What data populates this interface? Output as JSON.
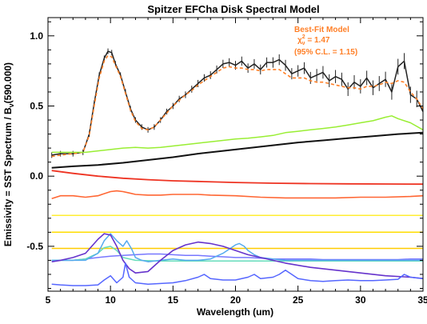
{
  "chart_data": {
    "type": "line",
    "title": "Spitzer EFCha Disk Spectral Model",
    "xlabel": "Wavelength (um)",
    "ylabel": "Emissivity   = SST Spectrum / B",
    "ylabel_sub": "ν",
    "ylabel_tail": "(590.000)",
    "xlim": [
      5,
      35
    ],
    "ylim": [
      -0.82,
      1.13
    ],
    "x_ticks": [
      5,
      10,
      15,
      20,
      25,
      30,
      35
    ],
    "y_ticks": [
      -0.5,
      0.0,
      0.5,
      1.0
    ],
    "y_tick_labels": [
      "-0.5",
      "0.0",
      "0.5",
      "1.0"
    ],
    "grid": false,
    "annotation": {
      "line1": "Best-Fit Model",
      "chi_prefix": "χ",
      "chi_sup": "2",
      "chi_sub": "ν",
      "chi_value": " = 1.47",
      "line3": "(95% C.L. = 1.15)",
      "color": "#ff7f27"
    },
    "series": [
      {
        "color": "#222222",
        "width": 1.5,
        "errorbars": true,
        "x": [
          5.3,
          6,
          7,
          7.8,
          8.3,
          8.7,
          9.1,
          9.5,
          9.8,
          10.1,
          10.4,
          10.8,
          11.2,
          11.6,
          12,
          12.5,
          13,
          13.5,
          14,
          14.5,
          15,
          15.5,
          16,
          16.5,
          17,
          17.5,
          18,
          18.5,
          19,
          19.5,
          20,
          20.5,
          21,
          21.5,
          22,
          22.5,
          23,
          23.5,
          24,
          24.5,
          25,
          25.5,
          26,
          26.5,
          27,
          27.5,
          28,
          28.5,
          29,
          29.5,
          30,
          30.5,
          31,
          31.5,
          32,
          32.5,
          33,
          33.5,
          34,
          34.5,
          35
        ],
        "y": [
          0.15,
          0.16,
          0.16,
          0.17,
          0.3,
          0.52,
          0.72,
          0.84,
          0.89,
          0.88,
          0.8,
          0.72,
          0.6,
          0.48,
          0.4,
          0.35,
          0.33,
          0.35,
          0.4,
          0.46,
          0.5,
          0.55,
          0.58,
          0.62,
          0.66,
          0.7,
          0.72,
          0.76,
          0.8,
          0.81,
          0.79,
          0.82,
          0.77,
          0.8,
          0.76,
          0.81,
          0.81,
          0.83,
          0.79,
          0.73,
          0.75,
          0.77,
          0.7,
          0.72,
          0.74,
          0.68,
          0.71,
          0.69,
          0.62,
          0.67,
          0.64,
          0.7,
          0.63,
          0.66,
          0.69,
          0.6,
          0.78,
          0.82,
          0.58,
          0.55,
          0.46
        ]
      },
      {
        "color": "#ff7f27",
        "width": 1.6,
        "dashed": true,
        "x": [
          5.3,
          6,
          7,
          7.8,
          8.3,
          8.7,
          9.1,
          9.5,
          9.8,
          10.1,
          10.4,
          10.8,
          11.2,
          11.6,
          12,
          12.5,
          13,
          13.5,
          14,
          14.5,
          15,
          15.5,
          16,
          16.5,
          17,
          17.5,
          18,
          18.5,
          19,
          19.5,
          20,
          20.5,
          21,
          21.5,
          22,
          22.5,
          23,
          23.5,
          24,
          24.5,
          25,
          25.5,
          26,
          26.5,
          27,
          27.5,
          28,
          28.5,
          29,
          29.5,
          30,
          30.5,
          31,
          31.5,
          32,
          32.5,
          33,
          33.5,
          34,
          34.5,
          35
        ],
        "y": [
          0.14,
          0.15,
          0.16,
          0.17,
          0.29,
          0.5,
          0.7,
          0.82,
          0.86,
          0.85,
          0.79,
          0.71,
          0.59,
          0.47,
          0.39,
          0.34,
          0.33,
          0.35,
          0.4,
          0.45,
          0.5,
          0.54,
          0.58,
          0.61,
          0.65,
          0.68,
          0.71,
          0.74,
          0.77,
          0.78,
          0.77,
          0.77,
          0.76,
          0.76,
          0.75,
          0.76,
          0.76,
          0.76,
          0.73,
          0.7,
          0.7,
          0.7,
          0.68,
          0.67,
          0.67,
          0.66,
          0.65,
          0.64,
          0.63,
          0.63,
          0.62,
          0.64,
          0.64,
          0.65,
          0.67,
          0.66,
          0.68,
          0.67,
          0.6,
          0.55,
          0.48
        ]
      },
      {
        "color": "#99ee33",
        "width": 1.5,
        "x": [
          5.3,
          7,
          8,
          9,
          10,
          11,
          12,
          13,
          14,
          15,
          16,
          17,
          18,
          19,
          20,
          21,
          22,
          23,
          24,
          25,
          26,
          27,
          28,
          29,
          30,
          31,
          32,
          32.5,
          33,
          34,
          35
        ],
        "y": [
          0.17,
          0.17,
          0.17,
          0.18,
          0.19,
          0.2,
          0.205,
          0.2,
          0.205,
          0.215,
          0.225,
          0.235,
          0.245,
          0.255,
          0.265,
          0.27,
          0.28,
          0.29,
          0.31,
          0.32,
          0.33,
          0.34,
          0.35,
          0.365,
          0.38,
          0.395,
          0.42,
          0.43,
          0.41,
          0.38,
          0.33
        ]
      },
      {
        "color": "#111111",
        "width": 2,
        "x": [
          5.3,
          7,
          9,
          11,
          13,
          15,
          17,
          19,
          21,
          23,
          25,
          27,
          29,
          31,
          33,
          35
        ],
        "y": [
          0.06,
          0.07,
          0.08,
          0.095,
          0.115,
          0.135,
          0.16,
          0.18,
          0.2,
          0.22,
          0.24,
          0.255,
          0.27,
          0.285,
          0.3,
          0.31
        ]
      },
      {
        "color": "#ee3322",
        "width": 1.8,
        "x": [
          5.3,
          7,
          9,
          11,
          13,
          15,
          17,
          20,
          23,
          26,
          29,
          32,
          35
        ],
        "y": [
          0.04,
          0.02,
          0.0,
          -0.015,
          -0.025,
          -0.033,
          -0.038,
          -0.045,
          -0.05,
          -0.053,
          -0.055,
          -0.056,
          -0.057
        ]
      },
      {
        "color": "#ff6633",
        "width": 1.6,
        "x": [
          5.3,
          6,
          7,
          8,
          9,
          10,
          10.5,
          11,
          11.5,
          12,
          13,
          14,
          15,
          16,
          17,
          18,
          20,
          22,
          24,
          26,
          28,
          30,
          32,
          34,
          35
        ],
        "y": [
          -0.16,
          -0.14,
          -0.14,
          -0.15,
          -0.14,
          -0.11,
          -0.105,
          -0.11,
          -0.12,
          -0.13,
          -0.135,
          -0.135,
          -0.13,
          -0.13,
          -0.13,
          -0.135,
          -0.14,
          -0.15,
          -0.155,
          -0.155,
          -0.155,
          -0.15,
          -0.15,
          -0.145,
          -0.14
        ]
      },
      {
        "color": "#ffee33",
        "width": 1.5,
        "x": [
          5.3,
          35
        ],
        "y": [
          -0.28,
          -0.28
        ]
      },
      {
        "color": "#ffdd00",
        "width": 1.5,
        "x": [
          5.3,
          35
        ],
        "y": [
          -0.4,
          -0.4
        ]
      },
      {
        "color": "#ffcc00",
        "width": 1.5,
        "x": [
          5.3,
          35
        ],
        "y": [
          -0.515,
          -0.515
        ]
      },
      {
        "color": "#7777ff",
        "width": 1.5,
        "x": [
          5.3,
          6,
          7,
          8,
          9,
          10,
          11,
          12,
          13,
          14,
          15,
          16,
          17,
          18,
          19,
          20,
          21,
          22,
          23,
          24,
          25,
          26,
          27,
          28,
          29,
          30,
          31,
          32,
          33,
          34,
          35
        ],
        "y": [
          -0.6,
          -0.6,
          -0.6,
          -0.59,
          -0.58,
          -0.57,
          -0.565,
          -0.56,
          -0.555,
          -0.555,
          -0.56,
          -0.565,
          -0.565,
          -0.57,
          -0.575,
          -0.58,
          -0.58,
          -0.585,
          -0.59,
          -0.59,
          -0.59,
          -0.59,
          -0.595,
          -0.595,
          -0.595,
          -0.595,
          -0.595,
          -0.595,
          -0.595,
          -0.59,
          -0.59
        ]
      },
      {
        "color": "#66ddbb",
        "width": 1.5,
        "x": [
          5.3,
          6,
          7,
          8,
          9,
          9.5,
          10,
          10.5,
          11,
          12,
          14,
          16,
          18,
          20,
          22,
          24,
          26,
          28,
          30,
          32,
          34,
          35
        ],
        "y": [
          -0.6,
          -0.6,
          -0.6,
          -0.59,
          -0.55,
          -0.51,
          -0.5,
          -0.53,
          -0.58,
          -0.6,
          -0.605,
          -0.605,
          -0.605,
          -0.605,
          -0.605,
          -0.605,
          -0.605,
          -0.605,
          -0.605,
          -0.605,
          -0.605,
          -0.605
        ]
      },
      {
        "color": "#55aaee",
        "width": 1.5,
        "x": [
          5.3,
          8,
          9,
          9.5,
          10,
          10.5,
          11,
          11.3,
          11.7,
          12,
          12.5,
          13,
          14,
          15,
          16,
          17,
          18,
          19,
          19.5,
          20,
          20.3,
          20.7,
          21,
          21.5,
          22,
          23,
          24,
          25,
          26,
          28,
          30,
          32,
          34,
          35
        ],
        "y": [
          -0.6,
          -0.6,
          -0.55,
          -0.46,
          -0.41,
          -0.46,
          -0.5,
          -0.46,
          -0.52,
          -0.58,
          -0.6,
          -0.61,
          -0.6,
          -0.59,
          -0.6,
          -0.6,
          -0.59,
          -0.55,
          -0.52,
          -0.49,
          -0.48,
          -0.5,
          -0.53,
          -0.56,
          -0.58,
          -0.59,
          -0.6,
          -0.6,
          -0.6,
          -0.6,
          -0.6,
          -0.6,
          -0.6,
          -0.6
        ]
      },
      {
        "color": "#6633cc",
        "width": 1.6,
        "x": [
          5.3,
          6,
          7,
          8,
          9,
          9.5,
          10,
          10.5,
          11,
          11.5,
          12,
          13,
          14,
          15,
          16,
          17,
          18,
          19,
          20,
          21,
          22,
          24,
          26,
          28,
          30,
          32,
          34,
          35
        ],
        "y": [
          -0.61,
          -0.6,
          -0.58,
          -0.55,
          -0.45,
          -0.41,
          -0.42,
          -0.5,
          -0.6,
          -0.66,
          -0.69,
          -0.68,
          -0.6,
          -0.53,
          -0.49,
          -0.47,
          -0.48,
          -0.5,
          -0.53,
          -0.56,
          -0.58,
          -0.62,
          -0.65,
          -0.67,
          -0.69,
          -0.71,
          -0.72,
          -0.73
        ]
      },
      {
        "color": "#5566ff",
        "width": 1.5,
        "x": [
          5.3,
          6,
          7,
          8,
          9,
          9.5,
          10,
          10.5,
          11,
          11.2,
          11.5,
          12,
          12.5,
          13,
          14,
          15,
          16,
          17,
          17.5,
          18,
          19,
          20,
          21,
          21.5,
          22,
          23,
          23.5,
          24,
          24.5,
          25,
          26,
          27,
          28,
          29,
          30,
          31,
          32,
          33,
          33.5,
          34,
          35
        ],
        "y": [
          -0.77,
          -0.775,
          -0.78,
          -0.78,
          -0.775,
          -0.74,
          -0.71,
          -0.76,
          -0.72,
          -0.62,
          -0.72,
          -0.76,
          -0.765,
          -0.77,
          -0.765,
          -0.76,
          -0.745,
          -0.72,
          -0.7,
          -0.73,
          -0.74,
          -0.74,
          -0.72,
          -0.7,
          -0.73,
          -0.72,
          -0.7,
          -0.67,
          -0.7,
          -0.73,
          -0.745,
          -0.75,
          -0.745,
          -0.74,
          -0.745,
          -0.745,
          -0.74,
          -0.735,
          -0.7,
          -0.72,
          -0.73
        ]
      }
    ]
  }
}
